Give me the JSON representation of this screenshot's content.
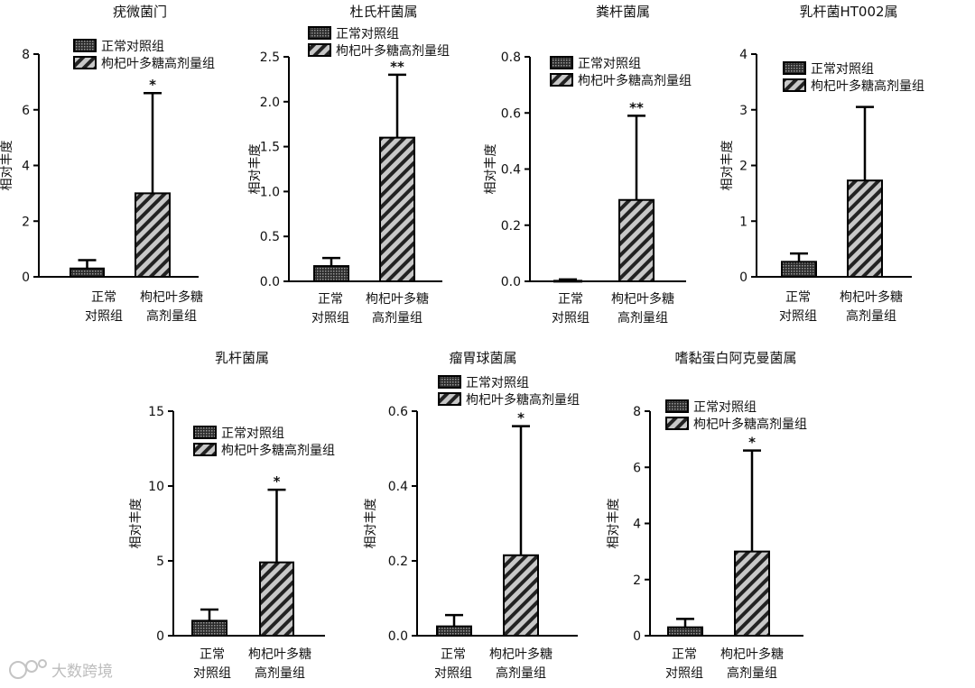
{
  "ylabel": "相对丰度",
  "groups": [
    "正常对照组",
    "枸杞叶多糖高剂量组"
  ],
  "categories": [
    [
      "正常",
      "对照组"
    ],
    [
      "枸杞叶多糖",
      "高剂量组"
    ]
  ],
  "colors": {
    "axis": "#000000",
    "pattern_fill": "#7a7a7a",
    "hatch_light": "#c8c8c8",
    "hatch_dark": "#222222"
  },
  "watermark": "大数跨境",
  "chart_data": [
    {
      "type": "bar",
      "title": "疣微菌门",
      "ylabel": "相对丰度",
      "ylim": [
        0,
        8
      ],
      "yticks": [
        "0",
        "2",
        "4",
        "6",
        "8"
      ],
      "series": [
        {
          "name": "正常对照组",
          "values": [
            0.3
          ],
          "error": [
            0.3
          ]
        },
        {
          "name": "枸杞叶多糖高剂量组",
          "values": [
            3.0
          ],
          "error": [
            3.6
          ]
        }
      ],
      "significance": "*"
    },
    {
      "type": "bar",
      "title": "杜氏杆菌属",
      "ylabel": "相对丰度",
      "ylim": [
        0,
        2.5
      ],
      "yticks": [
        "0.0",
        "0.5",
        "1.0",
        "1.5",
        "2.0",
        "2.5"
      ],
      "series": [
        {
          "name": "正常对照组",
          "values": [
            0.17
          ],
          "error": [
            0.09
          ]
        },
        {
          "name": "枸杞叶多糖高剂量组",
          "values": [
            1.6
          ],
          "error": [
            0.7
          ]
        }
      ],
      "significance": "**"
    },
    {
      "type": "bar",
      "title": "粪杆菌属",
      "ylabel": "相对丰度",
      "ylim": [
        0,
        0.8
      ],
      "yticks": [
        "0.0",
        "0.2",
        "0.4",
        "0.6",
        "0.8"
      ],
      "series": [
        {
          "name": "正常对照组",
          "values": [
            0.002
          ],
          "error": [
            0.005
          ]
        },
        {
          "name": "枸杞叶多糖高剂量组",
          "values": [
            0.29
          ],
          "error": [
            0.3
          ]
        }
      ],
      "significance": "**"
    },
    {
      "type": "bar",
      "title": "乳杆菌HT002属",
      "ylabel": "相对丰度",
      "ylim": [
        0,
        4
      ],
      "yticks": [
        "0",
        "1",
        "2",
        "3",
        "4"
      ],
      "series": [
        {
          "name": "正常对照组",
          "values": [
            0.27
          ],
          "error": [
            0.15
          ]
        },
        {
          "name": "枸杞叶多糖高剂量组",
          "values": [
            1.73
          ],
          "error": [
            1.32
          ]
        }
      ],
      "significance": ""
    },
    {
      "type": "bar",
      "title": "乳杆菌属",
      "ylabel": "相对丰度",
      "ylim": [
        0,
        15
      ],
      "yticks": [
        "0",
        "5",
        "10",
        "15"
      ],
      "series": [
        {
          "name": "正常对照组",
          "values": [
            1.0
          ],
          "error": [
            0.75
          ]
        },
        {
          "name": "枸杞叶多糖高剂量组",
          "values": [
            4.9
          ],
          "error": [
            4.85
          ]
        }
      ],
      "significance": "*"
    },
    {
      "type": "bar",
      "title": "瘤胃球菌属",
      "ylabel": "相对丰度",
      "ylim": [
        0,
        0.6
      ],
      "yticks": [
        "0.0",
        "0.2",
        "0.4",
        "0.6"
      ],
      "series": [
        {
          "name": "正常对照组",
          "values": [
            0.025
          ],
          "error": [
            0.03
          ]
        },
        {
          "name": "枸杞叶多糖高剂量组",
          "values": [
            0.215
          ],
          "error": [
            0.345
          ]
        }
      ],
      "significance": "*"
    },
    {
      "type": "bar",
      "title": "嗜黏蛋白阿克曼菌属",
      "ylabel": "相对丰度",
      "ylim": [
        0,
        8
      ],
      "yticks": [
        "0",
        "2",
        "4",
        "6",
        "8"
      ],
      "series": [
        {
          "name": "正常对照组",
          "values": [
            0.3
          ],
          "error": [
            0.3
          ]
        },
        {
          "name": "枸杞叶多糖高剂量组",
          "values": [
            3.0
          ],
          "error": [
            3.6
          ]
        }
      ],
      "significance": "*"
    }
  ]
}
